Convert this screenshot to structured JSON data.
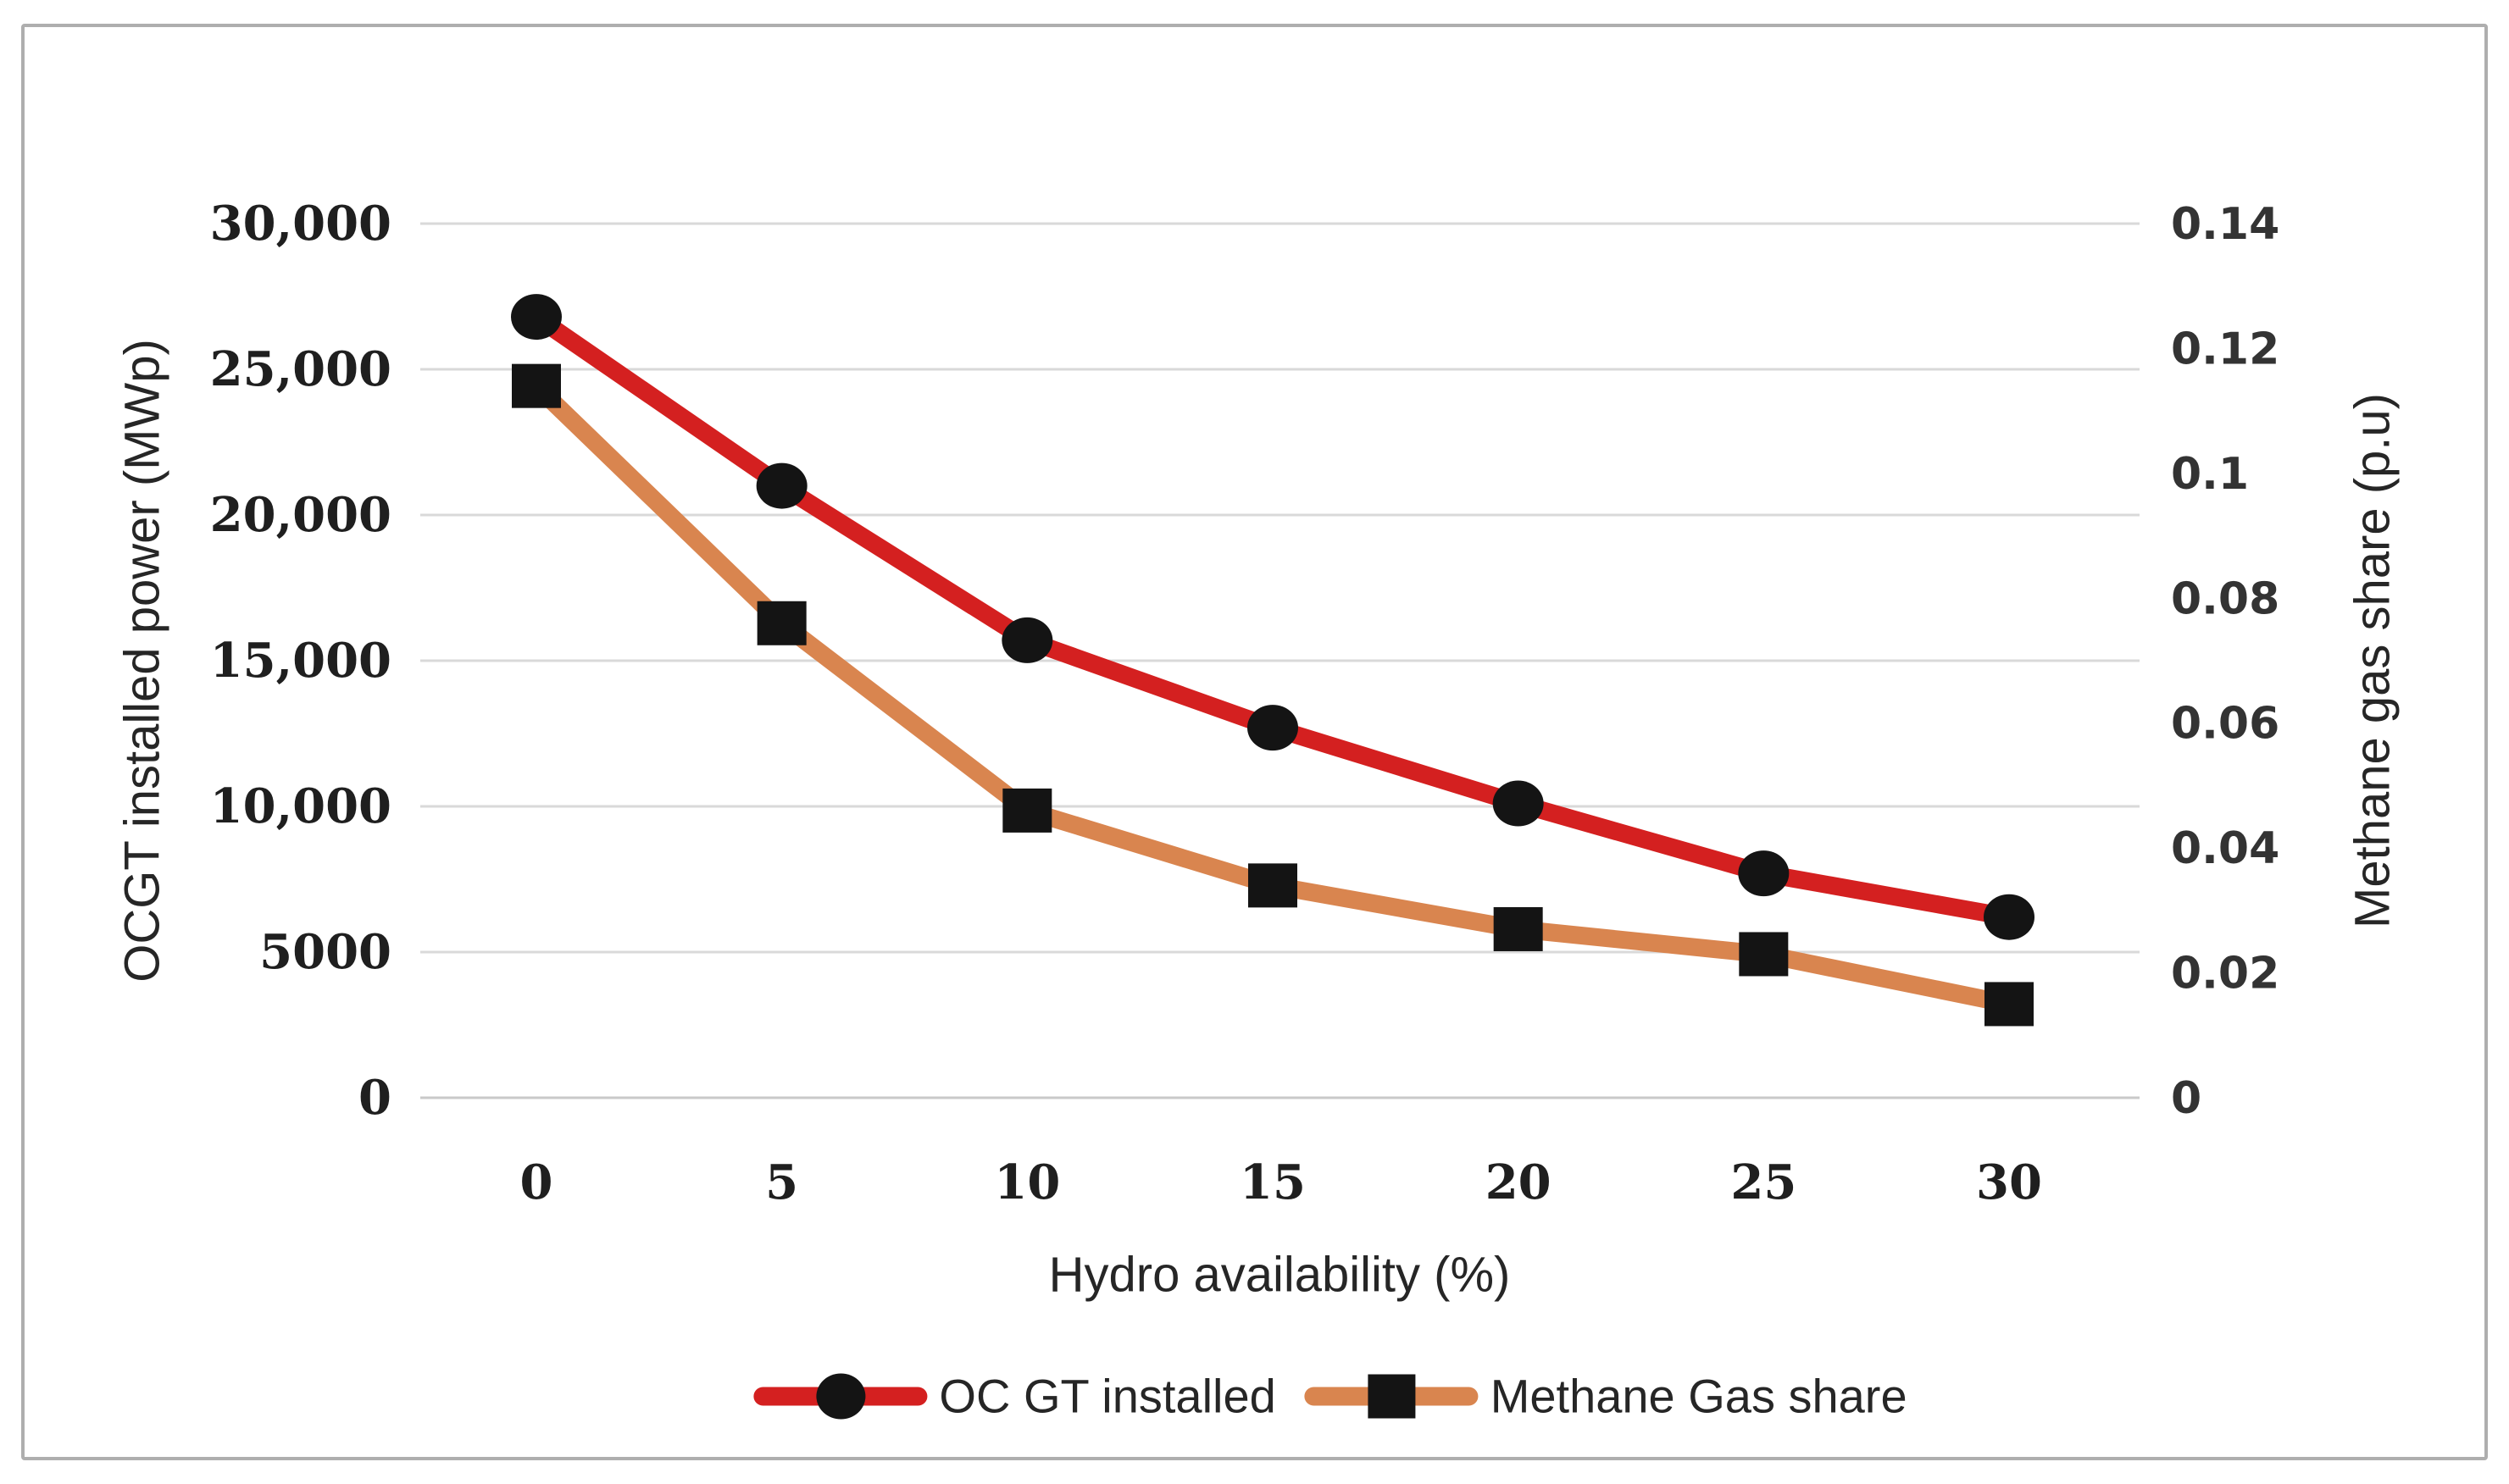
{
  "frame": {
    "background": "#ffffff",
    "border_color": "#aeaeae"
  },
  "chart_data": {
    "type": "line",
    "x": [
      0,
      5,
      10,
      15,
      20,
      25,
      30
    ],
    "x_tick_labels": [
      "0",
      "5",
      "10",
      "15",
      "20",
      "25",
      "30"
    ],
    "xlabel": "Hydro availability (%)",
    "left_axis": {
      "title": "OCGT installed power (MWp)",
      "min": 0,
      "max": 30000,
      "tick_step": 5000,
      "tick_labels_top_to_bottom": [
        "30,000",
        "25,000",
        "20,000",
        "15,000",
        "10,000",
        "5000",
        "0"
      ]
    },
    "right_axis": {
      "title": "Methane gas share (p.u)",
      "min": 0,
      "max": 0.14,
      "tick_step": 0.02,
      "tick_labels_top_to_bottom": [
        "0.14",
        "0.12",
        "0.1",
        "0.08",
        "0.06",
        "0.04",
        "0.02",
        "0"
      ]
    },
    "series": [
      {
        "name": "OC GT installed",
        "axis": "left",
        "values": [
          26800,
          21000,
          15700,
          12700,
          10100,
          7700,
          6200
        ],
        "line_color": "#d42020",
        "marker": "circle",
        "marker_color": "#141414"
      },
      {
        "name": "Methane Gas share",
        "axis": "right",
        "values": [
          0.114,
          0.076,
          0.046,
          0.034,
          0.027,
          0.023,
          0.015
        ],
        "line_color": "#d9854f",
        "marker": "square",
        "marker_color": "#141414"
      }
    ],
    "grid": {
      "on": true,
      "color": "#d9d9d9",
      "axis_line_color": "#c9c9c9"
    },
    "legend": {
      "position": "bottom-center"
    }
  },
  "style_colors": {
    "tick_text": "#1f1f1f",
    "right_tick_text": "#333333",
    "title_text": "#262626"
  }
}
